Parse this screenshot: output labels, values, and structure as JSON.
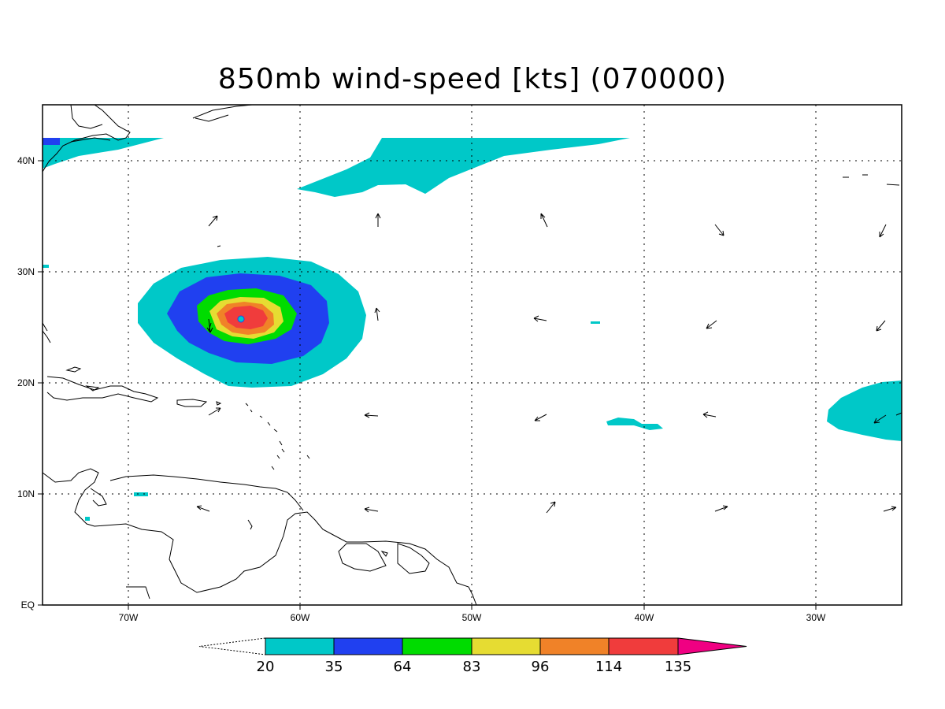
{
  "title": "850mb wind-speed [kts] (070000)",
  "map": {
    "lon_range": [
      -75,
      -25
    ],
    "lat_range": [
      0,
      45
    ],
    "lat_ticks": [
      {
        "value": 40,
        "label": "40N"
      },
      {
        "value": 30,
        "label": "30N"
      },
      {
        "value": 20,
        "label": "20N"
      },
      {
        "value": 10,
        "label": "10N"
      },
      {
        "value": 0,
        "label": "EQ"
      }
    ],
    "lon_ticks": [
      {
        "value": -70,
        "label": "70W"
      },
      {
        "value": -60,
        "label": "60W"
      },
      {
        "value": -50,
        "label": "50W"
      },
      {
        "value": -40,
        "label": "40W"
      },
      {
        "value": -30,
        "label": "30W"
      }
    ],
    "grid": "dotted"
  },
  "colorbar": {
    "levels": [
      "20",
      "35",
      "64",
      "83",
      "96",
      "114",
      "135"
    ],
    "colors": [
      "#00c8c8",
      "#2040f0",
      "#00dc00",
      "#e6dc32",
      "#f08228",
      "#f03c3c",
      "#f00082"
    ],
    "units": "kts"
  }
}
